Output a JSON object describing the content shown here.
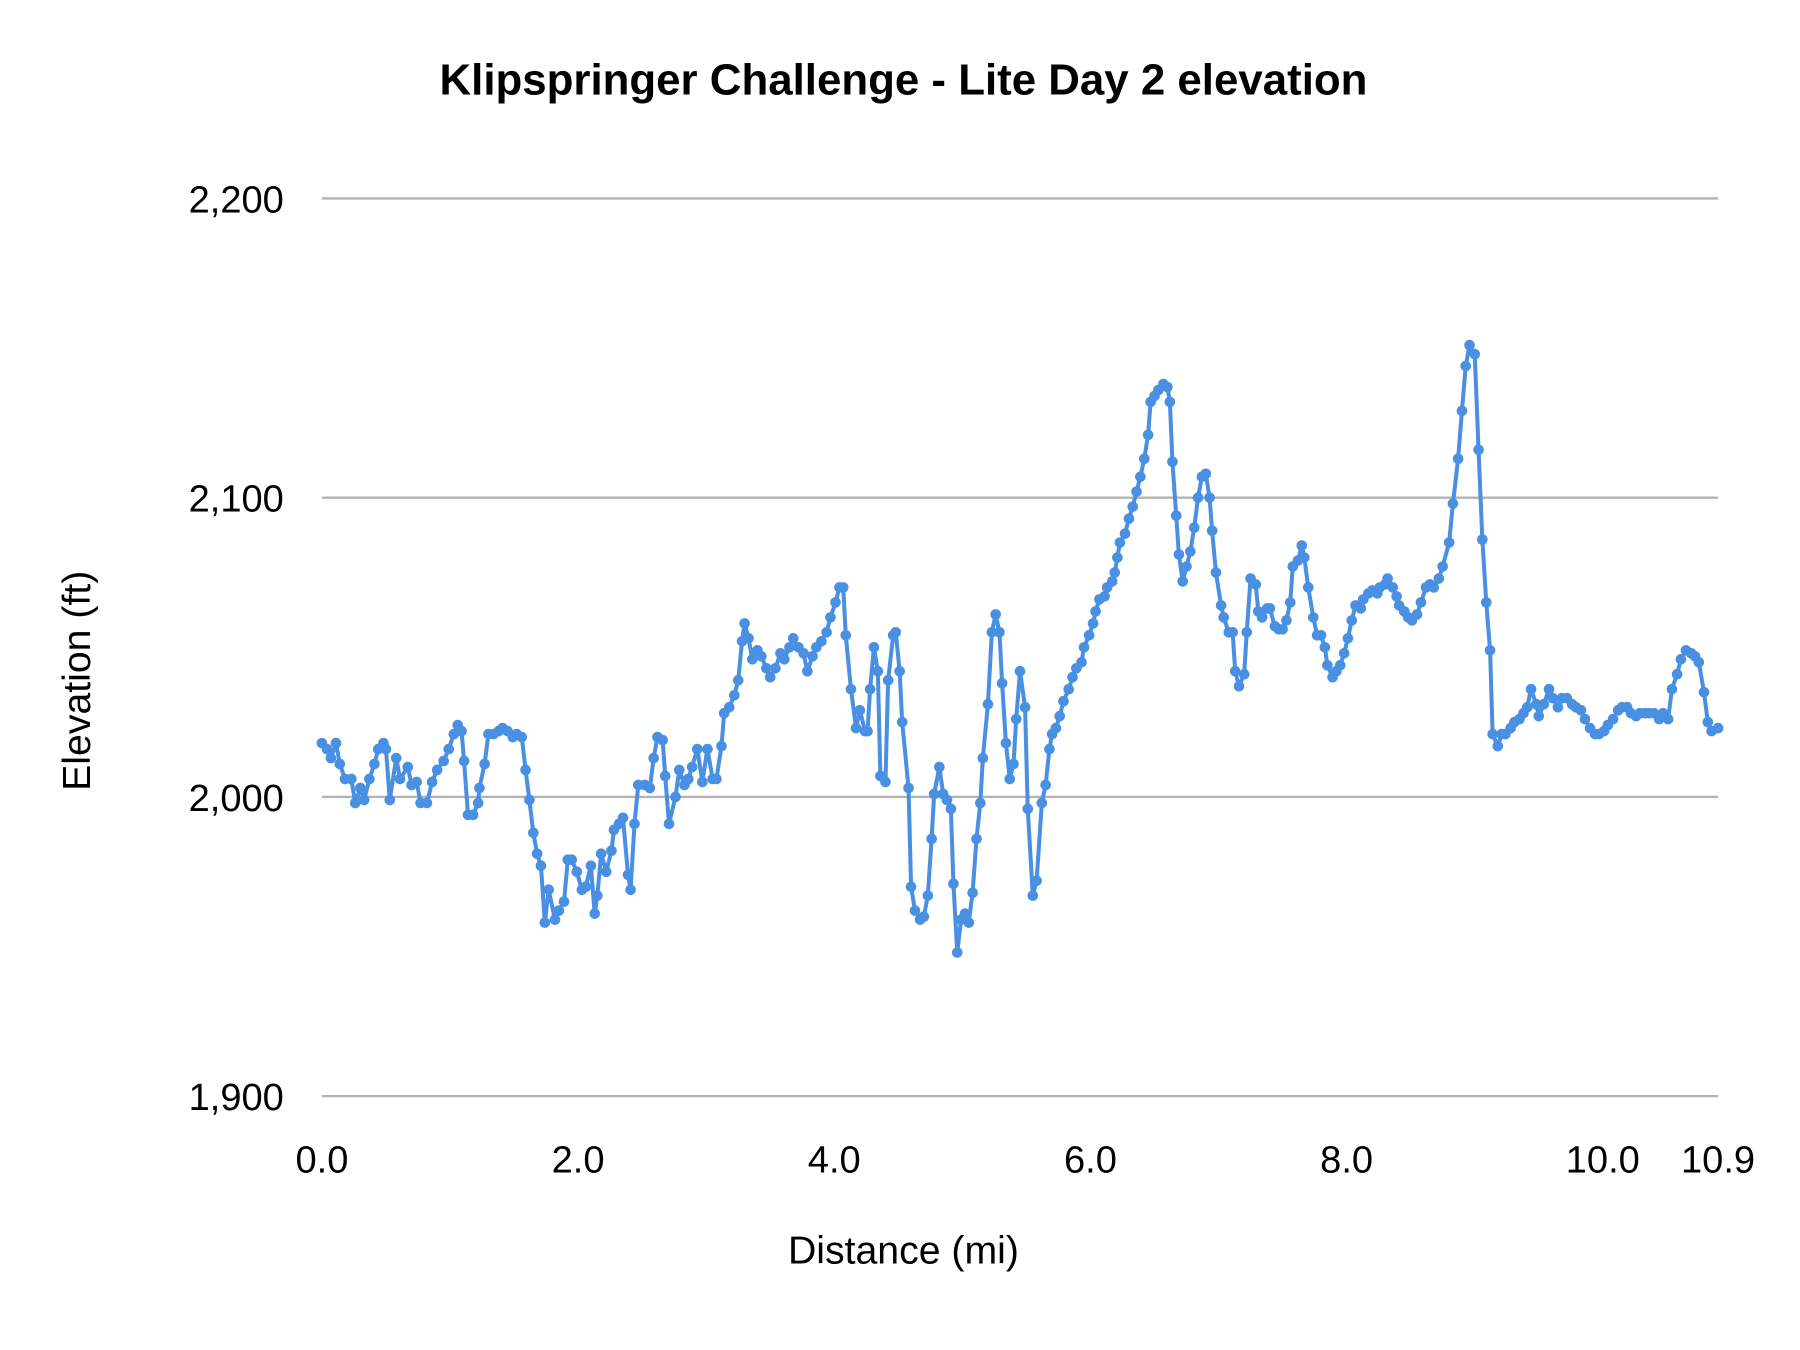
{
  "chart_data": {
    "type": "line",
    "title": "Klipspringer Challenge - Lite Day 2 elevation",
    "xlabel": "Distance (mi)",
    "ylabel": "Elevation (ft)",
    "xlim": [
      0,
      10.9
    ],
    "ylim": [
      1900,
      2200
    ],
    "x_ticks": [
      "0.0",
      "2.0",
      "4.0",
      "6.0",
      "8.0",
      "10.0",
      "10.9"
    ],
    "x_tick_values": [
      0,
      2,
      4,
      6,
      8,
      10,
      10.9
    ],
    "y_ticks": [
      "1,900",
      "2,000",
      "2,100",
      "2,200"
    ],
    "y_tick_values": [
      1900,
      2000,
      2100,
      2200
    ],
    "grid": true,
    "legend": "none",
    "markers": true,
    "color": "#4a90e2",
    "series": [
      {
        "x": [
          0,
          0.04,
          0.07,
          0.11,
          0.14,
          0.18,
          0.23,
          0.26,
          0.3,
          0.33,
          0.37,
          0.41,
          0.44,
          0.48,
          0.5,
          0.53,
          0.58,
          0.61,
          0.67,
          0.7,
          0.74,
          0.77,
          0.82,
          0.86,
          0.9,
          0.95,
          0.99,
          1.03,
          1.06,
          1.09,
          1.11,
          1.14,
          1.18,
          1.22,
          1.23,
          1.27,
          1.3,
          1.34,
          1.38,
          1.41,
          1.45,
          1.49,
          1.52,
          1.56,
          1.59,
          1.62,
          1.65,
          1.68,
          1.71,
          1.74,
          1.77,
          1.82,
          1.85,
          1.89,
          1.92,
          1.95,
          1.99,
          2.03,
          2.06,
          2.1,
          2.13,
          2.15,
          2.18,
          2.22,
          2.26,
          2.28,
          2.32,
          2.35,
          2.39,
          2.41,
          2.44,
          2.47,
          2.52,
          2.56,
          2.59,
          2.62,
          2.66,
          2.68,
          2.71,
          2.76,
          2.79,
          2.83,
          2.86,
          2.89,
          2.93,
          2.97,
          3.01,
          3.05,
          3.08,
          3.12,
          3.14,
          3.18,
          3.22,
          3.25,
          3.28,
          3.3,
          3.33,
          3.36,
          3.4,
          3.43,
          3.47,
          3.5,
          3.54,
          3.58,
          3.61,
          3.65,
          3.68,
          3.72,
          3.76,
          3.79,
          3.83,
          3.86,
          3.9,
          3.94,
          3.97,
          4.01,
          4.04,
          4.07,
          4.09,
          4.13,
          4.17,
          4.2,
          4.24,
          4.26,
          4.28,
          4.31,
          4.34,
          4.36,
          4.4,
          4.42,
          4.46,
          4.48,
          4.51,
          4.53,
          4.58,
          4.6,
          4.63,
          4.67,
          4.7,
          4.73,
          4.76,
          4.78,
          4.82,
          4.85,
          4.88,
          4.91,
          4.93,
          4.96,
          4.99,
          5.02,
          5.05,
          5.08,
          5.11,
          5.14,
          5.16,
          5.2,
          5.23,
          5.26,
          5.29,
          5.31,
          5.34,
          5.37,
          5.4,
          5.42,
          5.45,
          5.49,
          5.51,
          5.55,
          5.58,
          5.62,
          5.65,
          5.68,
          5.7,
          5.73,
          5.76,
          5.79,
          5.83,
          5.86,
          5.89,
          5.93,
          5.95,
          5.99,
          6.02,
          6.04,
          6.07,
          6.11,
          6.13,
          6.17,
          6.19,
          6.21,
          6.23,
          6.27,
          6.3,
          6.33,
          6.36,
          6.39,
          6.42,
          6.45,
          6.47,
          6.5,
          6.53,
          6.57,
          6.6,
          6.62,
          6.64,
          6.67,
          6.69,
          6.72,
          6.75,
          6.78,
          6.81,
          6.84,
          6.87,
          6.9,
          6.93,
          6.95,
          6.98,
          7.02,
          7.04,
          7.08,
          7.11,
          7.13,
          7.16,
          7.2,
          7.22,
          7.25,
          7.29,
          7.31,
          7.34,
          7.38,
          7.4,
          7.44,
          7.47,
          7.5,
          7.53,
          7.56,
          7.58,
          7.62,
          7.65,
          7.67,
          7.7,
          7.74,
          7.77,
          7.8,
          7.83,
          7.85,
          7.89,
          7.92,
          7.95,
          7.98,
          8.01,
          8.04,
          8.07,
          8.11,
          8.13,
          8.17,
          8.2,
          8.24,
          8.26,
          8.3,
          8.32,
          8.36,
          8.39,
          8.41,
          8.45,
          8.48,
          8.51,
          8.55,
          8.58,
          8.62,
          8.65,
          8.68,
          8.72,
          8.75,
          8.8,
          8.83,
          8.87,
          8.9,
          8.93,
          8.96,
          9.0,
          9.03,
          9.06,
          9.09,
          9.12,
          9.14,
          9.18,
          9.21,
          9.24,
          9.28,
          9.31,
          9.35,
          9.38,
          9.41,
          9.44,
          9.48,
          9.5,
          9.54,
          9.58,
          9.61,
          9.65,
          9.68,
          9.72,
          9.76,
          9.79,
          9.83,
          9.86,
          9.9,
          9.94,
          9.97,
          10.01,
          10.04,
          10.08,
          10.12,
          10.15,
          10.19,
          10.22,
          10.26,
          10.29,
          10.33,
          10.36,
          10.4,
          10.44,
          10.47,
          10.51,
          10.54,
          10.58,
          10.61,
          10.65,
          10.69,
          10.72,
          10.75,
          10.79,
          10.82,
          10.85,
          10.9
        ],
        "y": [
          2018,
          2016,
          2013,
          2018,
          2011,
          2006,
          2006,
          1998,
          2003,
          1999,
          2006,
          2011,
          2016,
          2018,
          2016,
          1999,
          2013,
          2006,
          2010,
          2004,
          2005,
          1998,
          1998,
          2005,
          2009,
          2012,
          2016,
          2021,
          2024,
          2022,
          2012,
          1994,
          1994,
          1998,
          2003,
          2011,
          2021,
          2021,
          2022,
          2023,
          2022,
          2020,
          2021,
          2020,
          2009,
          1999,
          1988,
          1981,
          1977,
          1958,
          1969,
          1959,
          1962,
          1965,
          1979,
          1979,
          1975,
          1969,
          1970,
          1977,
          1961,
          1967,
          1981,
          1975,
          1982,
          1989,
          1991,
          1993,
          1974,
          1969,
          1991,
          2004,
          2004,
          2003,
          2013,
          2020,
          2019,
          2007,
          1991,
          2000,
          2009,
          2004,
          2006,
          2010,
          2016,
          2005,
          2016,
          2006,
          2006,
          2017,
          2028,
          2030,
          2034,
          2039,
          2052,
          2058,
          2053,
          2046,
          2049,
          2047,
          2043,
          2040,
          2043,
          2048,
          2046,
          2050,
          2053,
          2050,
          2048,
          2042,
          2047,
          2050,
          2052,
          2055,
          2060,
          2065,
          2070,
          2070,
          2054,
          2036,
          2023,
          2029,
          2022,
          2022,
          2036,
          2050,
          2042,
          2007,
          2005,
          2039,
          2054,
          2055,
          2042,
          2025,
          2003,
          1970,
          1962,
          1959,
          1960,
          1967,
          1986,
          2001,
          2010,
          2001,
          1999,
          1996,
          1971,
          1948,
          1959,
          1961,
          1958,
          1968,
          1986,
          1998,
          2013,
          2031,
          2055,
          2061,
          2055,
          2038,
          2018,
          2006,
          2011,
          2026,
          2042,
          2030,
          1996,
          1967,
          1972,
          1998,
          2004,
          2016,
          2021,
          2023,
          2027,
          2032,
          2036,
          2040,
          2043,
          2045,
          2050,
          2054,
          2058,
          2062,
          2066,
          2067,
          2070,
          2072,
          2075,
          2080,
          2085,
          2088,
          2093,
          2097,
          2102,
          2107,
          2113,
          2121,
          2132,
          2134,
          2136,
          2138,
          2137,
          2132,
          2112,
          2094,
          2081,
          2072,
          2077,
          2082,
          2090,
          2100,
          2107,
          2108,
          2100,
          2089,
          2075,
          2064,
          2060,
          2055,
          2055,
          2042,
          2037,
          2041,
          2055,
          2073,
          2071,
          2062,
          2060,
          2063,
          2063,
          2057,
          2056,
          2056,
          2059,
          2065,
          2077,
          2079,
          2084,
          2080,
          2070,
          2060,
          2054,
          2054,
          2050,
          2044,
          2040,
          2042,
          2044,
          2048,
          2053,
          2059,
          2064,
          2063,
          2066,
          2068,
          2069,
          2068,
          2070,
          2071,
          2073,
          2070,
          2067,
          2064,
          2062,
          2060,
          2059,
          2061,
          2065,
          2070,
          2071,
          2070,
          2073,
          2077,
          2085,
          2098,
          2113,
          2129,
          2144,
          2151,
          2148,
          2116,
          2086,
          2065,
          2049,
          2021,
          2017,
          2021,
          2021,
          2023,
          2025,
          2026,
          2028,
          2030,
          2036,
          2031,
          2027,
          2031,
          2036,
          2033,
          2030,
          2033,
          2033,
          2031,
          2030,
          2029,
          2026,
          2023,
          2021,
          2021,
          2022,
          2024,
          2026,
          2029,
          2030,
          2030,
          2028,
          2027,
          2028,
          2028,
          2028,
          2028,
          2026,
          2028,
          2026,
          2036,
          2041,
          2046,
          2049,
          2048,
          2047,
          2045,
          2035,
          2025,
          2022,
          2023
        ]
      }
    ]
  }
}
